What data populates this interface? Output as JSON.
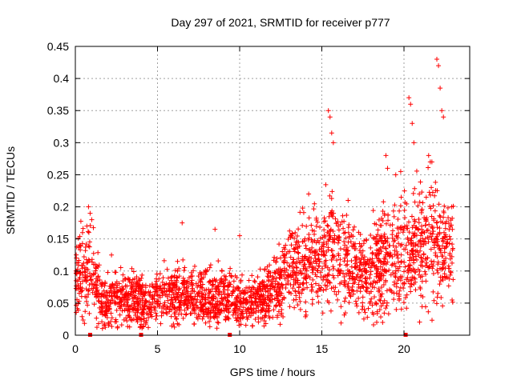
{
  "chart_data": {
    "type": "scatter",
    "title": "Day 297 of 2021, SRMTID for receiver p777",
    "xlabel": "GPS time / hours",
    "ylabel": "SRMTID / TECUs",
    "xlim": [
      0,
      24
    ],
    "ylim": [
      0,
      0.45
    ],
    "x_ticks": [
      0,
      5,
      10,
      15,
      20
    ],
    "y_ticks": [
      0,
      0.05,
      0.1,
      0.15,
      0.2,
      0.25,
      0.3,
      0.35,
      0.4,
      0.45
    ],
    "x_tick_labels": [
      "0",
      "5",
      "10",
      "15",
      "20"
    ],
    "y_tick_labels": [
      "0",
      "0.05",
      "0.1",
      "0.15",
      "0.2",
      "0.25",
      "0.3",
      "0.35",
      "0.4",
      "0.45"
    ],
    "grid": true,
    "marker": "plus",
    "color": "#ff0000",
    "gap_markers_x": [
      0.9,
      4.0,
      9.4,
      20.1
    ],
    "envelope": {
      "x": [
        0,
        0.5,
        1,
        1.5,
        2,
        2.5,
        3,
        3.5,
        4,
        4.5,
        5,
        5.5,
        6,
        6.5,
        7,
        7.5,
        8,
        8.5,
        9,
        9.5,
        10,
        10.5,
        11,
        11.5,
        12,
        12.5,
        13,
        13.5,
        14,
        14.5,
        15,
        15.5,
        16,
        16.5,
        17,
        17.5,
        18,
        18.5,
        19,
        19.5,
        20,
        20.5,
        21,
        21.5,
        22,
        22.5,
        23
      ],
      "center": [
        0.09,
        0.1,
        0.1,
        0.055,
        0.05,
        0.05,
        0.055,
        0.06,
        0.05,
        0.05,
        0.06,
        0.06,
        0.06,
        0.065,
        0.06,
        0.055,
        0.06,
        0.055,
        0.065,
        0.055,
        0.05,
        0.05,
        0.055,
        0.055,
        0.07,
        0.08,
        0.1,
        0.105,
        0.105,
        0.12,
        0.12,
        0.125,
        0.12,
        0.11,
        0.1,
        0.1,
        0.1,
        0.11,
        0.12,
        0.12,
        0.12,
        0.12,
        0.14,
        0.15,
        0.14,
        0.13,
        0.12
      ],
      "spread": [
        0.04,
        0.05,
        0.05,
        0.03,
        0.03,
        0.03,
        0.03,
        0.03,
        0.03,
        0.03,
        0.03,
        0.03,
        0.035,
        0.035,
        0.03,
        0.03,
        0.03,
        0.03,
        0.035,
        0.03,
        0.03,
        0.025,
        0.03,
        0.03,
        0.035,
        0.04,
        0.045,
        0.05,
        0.05,
        0.05,
        0.055,
        0.07,
        0.06,
        0.055,
        0.05,
        0.05,
        0.05,
        0.055,
        0.06,
        0.06,
        0.06,
        0.06,
        0.07,
        0.075,
        0.07,
        0.06,
        0.055
      ]
    },
    "outliers": {
      "x": [
        0.7,
        0.8,
        0.9,
        1.0,
        2.2,
        6.5,
        8.5,
        10.0,
        14.2,
        15.4,
        15.5,
        15.6,
        15.7,
        16.6,
        18.7,
        18.9,
        19.0,
        19.5,
        19.8,
        20.3,
        20.4,
        20.5,
        20.6,
        21.5,
        21.6,
        21.7,
        22.0,
        22.1,
        22.2,
        22.3,
        22.4
      ],
      "y": [
        0.17,
        0.2,
        0.19,
        0.18,
        0.125,
        0.175,
        0.165,
        0.155,
        0.22,
        0.35,
        0.34,
        0.315,
        0.3,
        0.21,
        0.02,
        0.28,
        0.26,
        0.25,
        0.255,
        0.37,
        0.36,
        0.33,
        0.3,
        0.28,
        0.27,
        0.27,
        0.43,
        0.42,
        0.385,
        0.35,
        0.34
      ]
    }
  }
}
